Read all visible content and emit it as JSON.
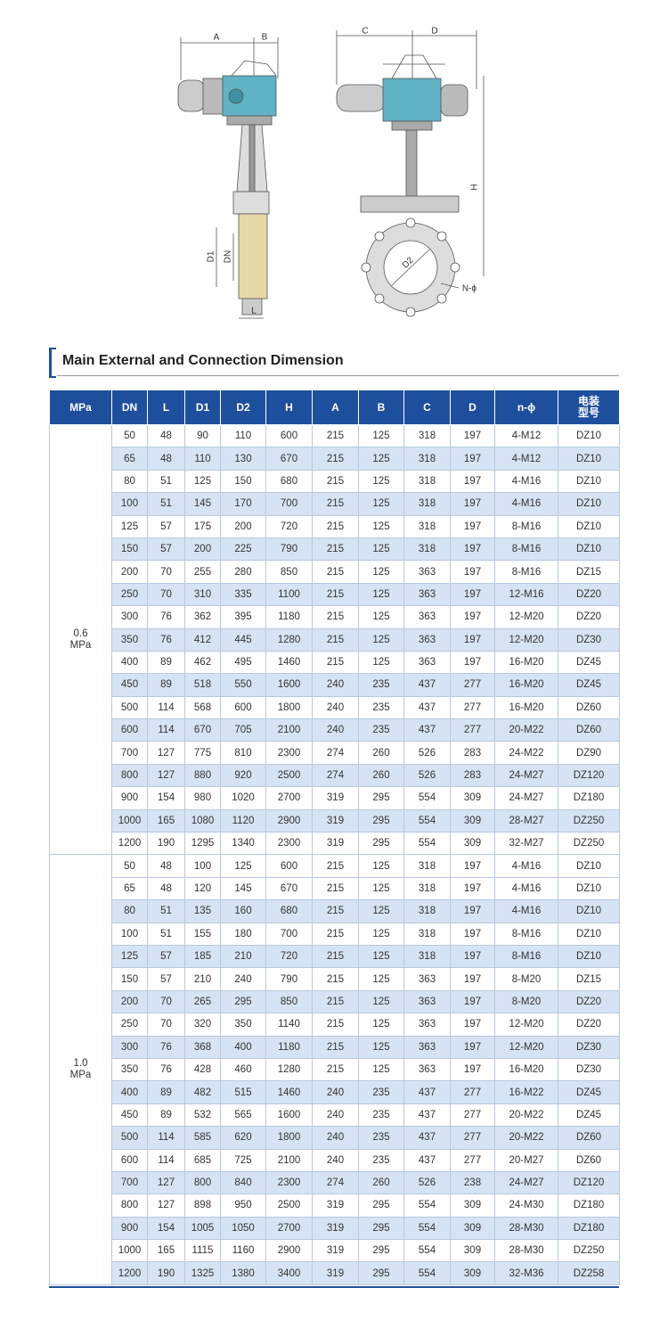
{
  "diagram": {
    "labels": {
      "A": "A",
      "B": "B",
      "C": "C",
      "D": "D",
      "H": "H",
      "D1": "D1",
      "DN": "DN",
      "L": "L",
      "D2": "D2",
      "N": "N-ϕ"
    }
  },
  "section": {
    "title": "Main External and Connection Dimension"
  },
  "table": {
    "header": [
      "MPa",
      "DN",
      "L",
      "D1",
      "D2",
      "H",
      "A",
      "B",
      "C",
      "D",
      "n-ϕ",
      "电装型号"
    ],
    "groups": [
      {
        "pressure": "0.6 MPa",
        "rows": [
          [
            50,
            48,
            90,
            110,
            600,
            215,
            125,
            318,
            197,
            "4-M12",
            "DZ10"
          ],
          [
            65,
            48,
            110,
            130,
            670,
            215,
            125,
            318,
            197,
            "4-M12",
            "DZ10"
          ],
          [
            80,
            51,
            125,
            150,
            680,
            215,
            125,
            318,
            197,
            "4-M16",
            "DZ10"
          ],
          [
            100,
            51,
            145,
            170,
            700,
            215,
            125,
            318,
            197,
            "4-M16",
            "DZ10"
          ],
          [
            125,
            57,
            175,
            200,
            720,
            215,
            125,
            318,
            197,
            "8-M16",
            "DZ10"
          ],
          [
            150,
            57,
            200,
            225,
            790,
            215,
            125,
            318,
            197,
            "8-M16",
            "DZ10"
          ],
          [
            200,
            70,
            255,
            280,
            850,
            215,
            125,
            363,
            197,
            "8-M16",
            "DZ15"
          ],
          [
            250,
            70,
            310,
            335,
            1100,
            215,
            125,
            363,
            197,
            "12-M16",
            "DZ20"
          ],
          [
            300,
            76,
            362,
            395,
            1180,
            215,
            125,
            363,
            197,
            "12-M20",
            "DZ20"
          ],
          [
            350,
            76,
            412,
            445,
            1280,
            215,
            125,
            363,
            197,
            "12-M20",
            "DZ30"
          ],
          [
            400,
            89,
            462,
            495,
            1460,
            215,
            125,
            363,
            197,
            "16-M20",
            "DZ45"
          ],
          [
            450,
            89,
            518,
            550,
            1600,
            240,
            235,
            437,
            277,
            "16-M20",
            "DZ45"
          ],
          [
            500,
            114,
            568,
            600,
            1800,
            240,
            235,
            437,
            277,
            "16-M20",
            "DZ60"
          ],
          [
            600,
            114,
            670,
            705,
            2100,
            240,
            235,
            437,
            277,
            "20-M22",
            "DZ60"
          ],
          [
            700,
            127,
            775,
            810,
            2300,
            274,
            260,
            526,
            283,
            "24-M22",
            "DZ90"
          ],
          [
            800,
            127,
            880,
            920,
            2500,
            274,
            260,
            526,
            283,
            "24-M27",
            "DZ120"
          ],
          [
            900,
            154,
            980,
            1020,
            2700,
            319,
            295,
            554,
            309,
            "24-M27",
            "DZ180"
          ],
          [
            1000,
            165,
            1080,
            1120,
            2900,
            319,
            295,
            554,
            309,
            "28-M27",
            "DZ250"
          ],
          [
            1200,
            190,
            1295,
            1340,
            2300,
            319,
            295,
            554,
            309,
            "32-M27",
            "DZ250"
          ]
        ]
      },
      {
        "pressure": "1.0 MPa",
        "rows": [
          [
            50,
            48,
            100,
            125,
            600,
            215,
            125,
            318,
            197,
            "4-M16",
            "DZ10"
          ],
          [
            65,
            48,
            120,
            145,
            670,
            215,
            125,
            318,
            197,
            "4-M16",
            "DZ10"
          ],
          [
            80,
            51,
            135,
            160,
            680,
            215,
            125,
            318,
            197,
            "4-M16",
            "DZ10"
          ],
          [
            100,
            51,
            155,
            180,
            700,
            215,
            125,
            318,
            197,
            "8-M16",
            "DZ10"
          ],
          [
            125,
            57,
            185,
            210,
            720,
            215,
            125,
            318,
            197,
            "8-M16",
            "DZ10"
          ],
          [
            150,
            57,
            210,
            240,
            790,
            215,
            125,
            363,
            197,
            "8-M20",
            "DZ15"
          ],
          [
            200,
            70,
            265,
            295,
            850,
            215,
            125,
            363,
            197,
            "8-M20",
            "DZ20"
          ],
          [
            250,
            70,
            320,
            350,
            1140,
            215,
            125,
            363,
            197,
            "12-M20",
            "DZ20"
          ],
          [
            300,
            76,
            368,
            400,
            1180,
            215,
            125,
            363,
            197,
            "12-M20",
            "DZ30"
          ],
          [
            350,
            76,
            428,
            460,
            1280,
            215,
            125,
            363,
            197,
            "16-M20",
            "DZ30"
          ],
          [
            400,
            89,
            482,
            515,
            1460,
            240,
            235,
            437,
            277,
            "16-M22",
            "DZ45"
          ],
          [
            450,
            89,
            532,
            565,
            1600,
            240,
            235,
            437,
            277,
            "20-M22",
            "DZ45"
          ],
          [
            500,
            114,
            585,
            620,
            1800,
            240,
            235,
            437,
            277,
            "20-M22",
            "DZ60"
          ],
          [
            600,
            114,
            685,
            725,
            2100,
            240,
            235,
            437,
            277,
            "20-M27",
            "DZ60"
          ],
          [
            700,
            127,
            800,
            840,
            2300,
            274,
            260,
            526,
            238,
            "24-M27",
            "DZ120"
          ],
          [
            800,
            127,
            898,
            950,
            2500,
            319,
            295,
            554,
            309,
            "24-M30",
            "DZ180"
          ],
          [
            900,
            154,
            1005,
            1050,
            2700,
            319,
            295,
            554,
            309,
            "28-M30",
            "DZ180"
          ],
          [
            1000,
            165,
            1115,
            1160,
            2900,
            319,
            295,
            554,
            309,
            "28-M30",
            "DZ250"
          ],
          [
            1200,
            190,
            1325,
            1380,
            3400,
            319,
            295,
            554,
            309,
            "32-M36",
            "DZ258"
          ]
        ]
      }
    ]
  }
}
